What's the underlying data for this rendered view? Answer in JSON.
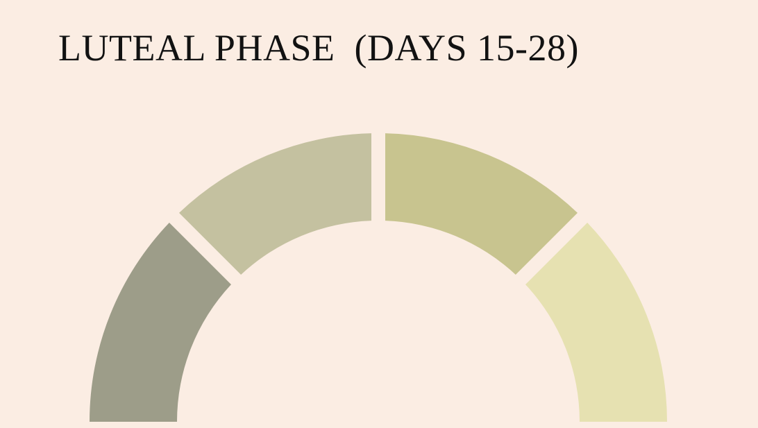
{
  "header": {
    "title": "LUTEAL PHASE  (DAYS 15-28)"
  },
  "dial": {
    "segments": [
      {
        "name": "segment-1",
        "color": "#9d9d89",
        "fraction": 0.25
      },
      {
        "name": "segment-2",
        "color": "#c4c1a0",
        "fraction": 0.25
      },
      {
        "name": "segment-3",
        "color": "#c8c48f",
        "fraction": 0.25
      },
      {
        "name": "segment-4",
        "color": "#e6e1b1",
        "fraction": 0.25
      }
    ],
    "background": "#fbede3"
  }
}
